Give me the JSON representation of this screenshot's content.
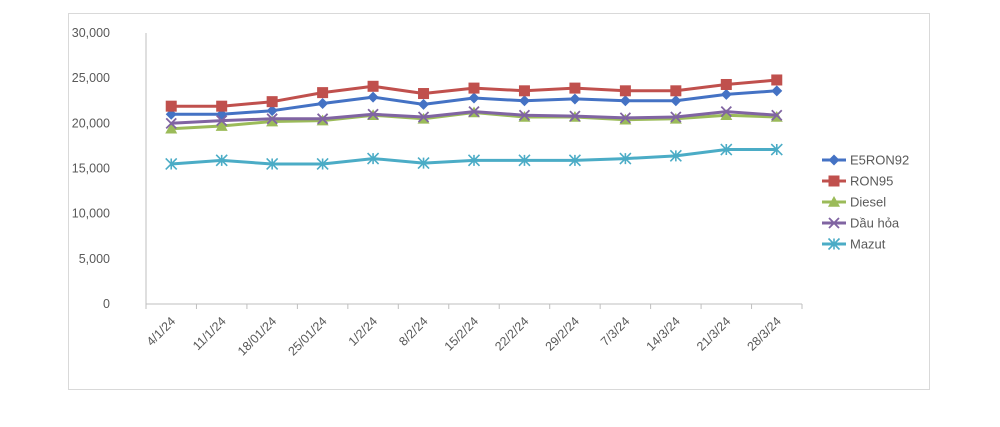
{
  "chart_data": {
    "type": "line",
    "title": "",
    "xlabel": "",
    "ylabel": "",
    "ylim": [
      0,
      30000
    ],
    "yticks": [
      "0",
      "5,000",
      "10,000",
      "15,000",
      "20,000",
      "25,000",
      "30,000"
    ],
    "ytick_values": [
      0,
      5000,
      10000,
      15000,
      20000,
      25000,
      30000
    ],
    "categories": [
      "4/1/24",
      "11/1/24",
      "18/01/24",
      "25/01/24",
      "1/2/24",
      "8/2/24",
      "15/2/24",
      "22/2/24",
      "29/2/24",
      "7/3/24",
      "14/3/24",
      "21/3/24",
      "28/3/24"
    ],
    "grid": false,
    "legend_position": "right",
    "series": [
      {
        "name": "E5RON92",
        "color": "#4472C4",
        "marker": "diamond",
        "values": [
          21000,
          21000,
          21400,
          22200,
          22900,
          22100,
          22800,
          22500,
          22700,
          22500,
          22500,
          23200,
          23600
        ]
      },
      {
        "name": "RON95",
        "color": "#C0504D",
        "marker": "square",
        "values": [
          21900,
          21900,
          22400,
          23400,
          24100,
          23300,
          23900,
          23600,
          23900,
          23600,
          23600,
          24300,
          24800
        ]
      },
      {
        "name": "Diesel",
        "color": "#9BBB59",
        "marker": "triangle",
        "values": [
          19400,
          19700,
          20200,
          20300,
          20900,
          20500,
          21200,
          20700,
          20700,
          20400,
          20500,
          20900,
          20700
        ]
      },
      {
        "name": "Dầu hỏa",
        "color": "#8064A2",
        "marker": "x",
        "values": [
          20000,
          20300,
          20500,
          20500,
          21000,
          20700,
          21300,
          20900,
          20800,
          20600,
          20700,
          21300,
          20900
        ]
      },
      {
        "name": "Mazut",
        "color": "#4BACC6",
        "marker": "star",
        "values": [
          15500,
          15900,
          15500,
          15500,
          16100,
          15600,
          15900,
          15900,
          15900,
          16100,
          16400,
          17100,
          17100
        ]
      }
    ]
  }
}
